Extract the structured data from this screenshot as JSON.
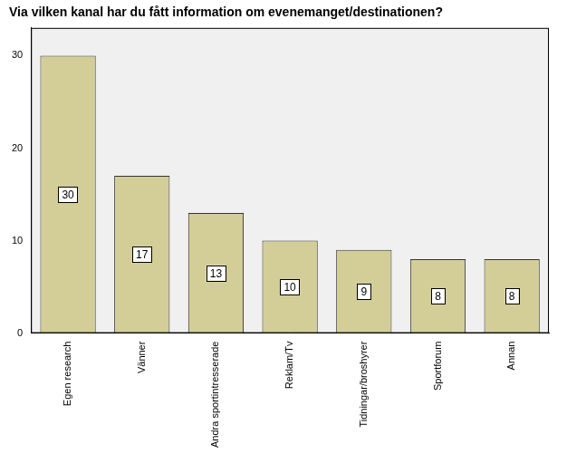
{
  "chart_data": {
    "type": "bar",
    "title": "Via vilken kanal har du fått information om evenemanget/destinationen?",
    "categories": [
      "Egen research",
      "Vänner",
      "Andra sportintresserade",
      "Reklam/Tv",
      "Tidningar/broshyrer",
      "Sportforum",
      "Annan"
    ],
    "values": [
      30,
      17,
      13,
      10,
      9,
      8,
      8
    ],
    "color": "#d3ce98",
    "ylim": [
      0,
      33
    ],
    "yticks": [
      0,
      10,
      20,
      30
    ],
    "grid": false,
    "data_labels": true
  }
}
